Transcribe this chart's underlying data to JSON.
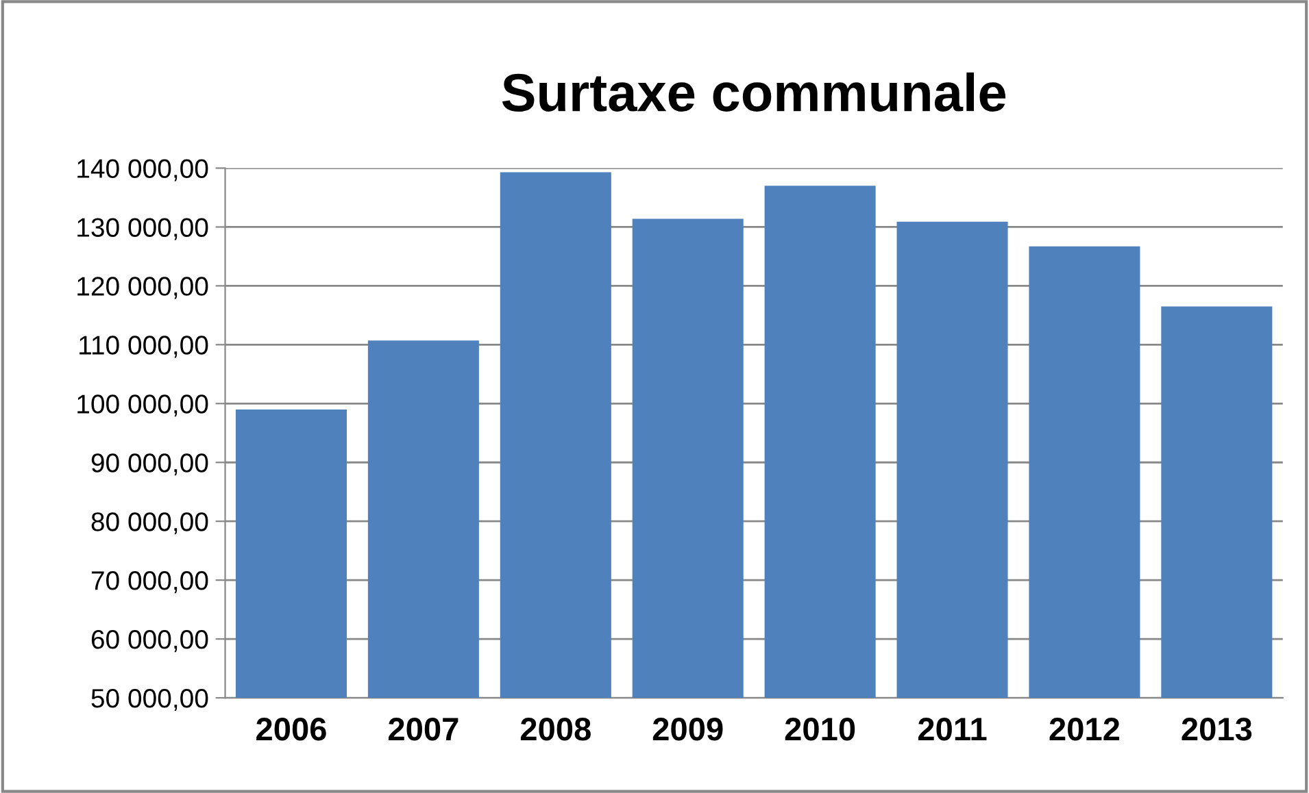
{
  "chart_data": {
    "type": "bar",
    "title": "Surtaxe communale",
    "categories": [
      "2006",
      "2007",
      "2008",
      "2009",
      "2010",
      "2011",
      "2012",
      "2013"
    ],
    "values": [
      99000,
      110700,
      139300,
      131400,
      137000,
      130900,
      126700,
      116500
    ],
    "color": "#4f81bd",
    "ylim": [
      50000,
      140000
    ],
    "yticks": [
      {
        "value": 50000,
        "label": "50 000,00"
      },
      {
        "value": 60000,
        "label": "60 000,00"
      },
      {
        "value": 70000,
        "label": "70 000,00"
      },
      {
        "value": 80000,
        "label": "80 000,00"
      },
      {
        "value": 90000,
        "label": "90 000,00"
      },
      {
        "value": 100000,
        "label": "100 000,00"
      },
      {
        "value": 110000,
        "label": "110 000,00"
      },
      {
        "value": 120000,
        "label": "120 000,00"
      },
      {
        "value": 130000,
        "label": "130 000,00"
      },
      {
        "value": 140000,
        "label": "140 000,00"
      }
    ],
    "grid": "y",
    "legend": false
  }
}
